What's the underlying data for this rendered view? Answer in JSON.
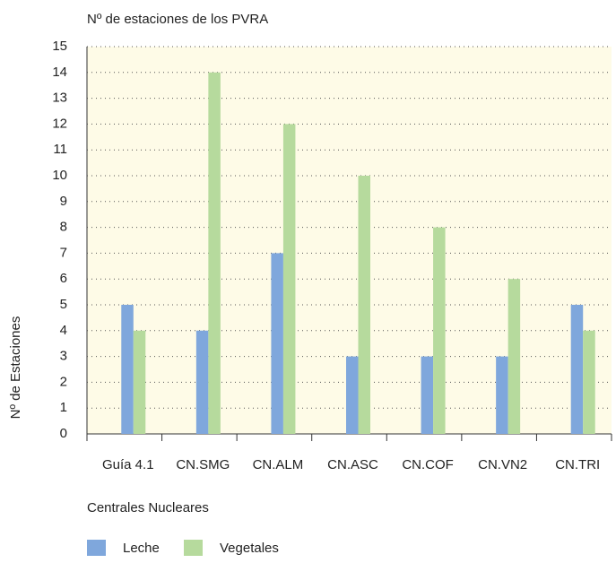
{
  "chart_data": {
    "type": "bar",
    "title": "Nº de estaciones de los PVRA",
    "y_label": "Nº de Estaciones",
    "x_label": "Centrales Nucleares",
    "categories": [
      "Guía 4.1",
      "CN.SMG",
      "CN.ALM",
      "CN.ASC",
      "CN.COF",
      "CN.VN2",
      "CN.TRI"
    ],
    "series": [
      {
        "name": "Leche",
        "color": "#7fa7dc",
        "values": [
          5,
          4,
          7,
          3,
          3,
          3,
          5
        ]
      },
      {
        "name": "Vegetales",
        "color": "#b6da9d",
        "values": [
          4,
          14,
          12,
          10,
          8,
          6,
          4
        ]
      }
    ],
    "ylim": [
      0,
      15
    ],
    "yticks": [
      0,
      1,
      2,
      3,
      4,
      5,
      6,
      7,
      8,
      9,
      10,
      11,
      12,
      13,
      14,
      15
    ],
    "grid": true,
    "legend": "bottom-left"
  }
}
